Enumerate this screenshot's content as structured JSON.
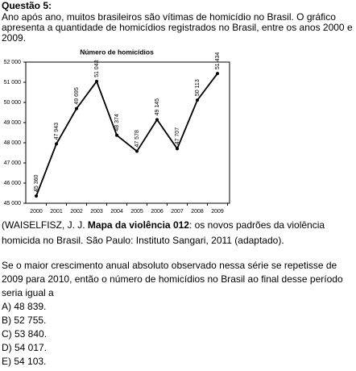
{
  "question": "Questão 5:",
  "intro": "Ano após ano, muitos brasileiros são vítimas de homicídio no Brasil. O gráfico apresenta a quantidade de homicídios registrados no Brasil, entre os anos 2000 e 2009.",
  "chart_data": {
    "type": "line",
    "title": "Número de homicídios",
    "categories": [
      "2000",
      "2001",
      "2002",
      "2003",
      "2004",
      "2005",
      "2006",
      "2007",
      "2008",
      "2009"
    ],
    "values": [
      45360,
      47943,
      49695,
      51043,
      48374,
      47578,
      49145,
      47707,
      50113,
      51434
    ],
    "value_labels": [
      "45 360",
      "47 943",
      "49 695",
      "51 043",
      "48 374",
      "47 578",
      "49 145",
      "47 707",
      "50 113",
      "51 434"
    ],
    "color": "#000000",
    "ylim": [
      45000,
      52000
    ],
    "yticks": [
      {
        "value": 45000,
        "label": "45 000"
      },
      {
        "value": 46000,
        "label": "46 000"
      },
      {
        "value": 47000,
        "label": "47 000"
      },
      {
        "value": 48000,
        "label": "48 000"
      },
      {
        "value": 49000,
        "label": "49 000"
      },
      {
        "value": 50000,
        "label": "50 000"
      },
      {
        "value": 51000,
        "label": "51 000"
      },
      {
        "value": 52000,
        "label": "52 000"
      }
    ]
  },
  "citation": {
    "author": "(WAISELFISZ, J. J. ",
    "title": "Mapa da violência 012",
    "rest": ": os novos padrões da violência homicida no Brasil. São Paulo: Instituto Sangari, 2011 (adaptado)."
  },
  "prompt": "Se o maior crescimento anual absoluto observado nessa série se repetisse de 2009 para 2010, então o número de homicídios no Brasil ao final desse período seria igual a",
  "options": [
    "A) 48 839.",
    "B) 52 755.",
    "C) 53 840.",
    "D) 54 017.",
    "E) 54 103."
  ]
}
